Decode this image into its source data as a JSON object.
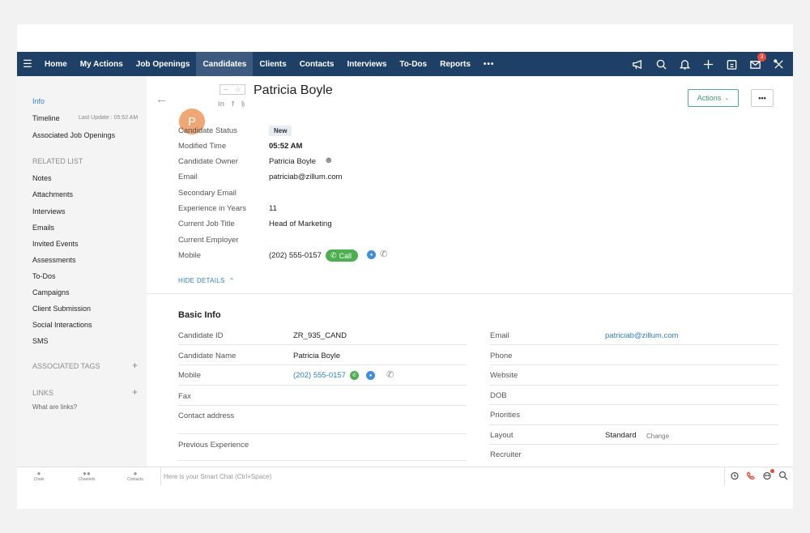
{
  "nav": {
    "tabs": [
      "Home",
      "My Actions",
      "Job Openings",
      "Candidates",
      "Clients",
      "Contacts",
      "Interviews",
      "To-Dos",
      "Reports"
    ],
    "more": "•••",
    "mail_badge": "3"
  },
  "sidebar": {
    "info": "Info",
    "timeline": "Timeline",
    "last_update": "Last Update : 05:52 AM",
    "associated_jobs": "Associated Job Openings",
    "related_list_heading": "RELATED LIST",
    "related": [
      "Notes",
      "Attachments",
      "Interviews",
      "Emails",
      "Invited Events",
      "Assessments",
      "To-Dos",
      "Campaigns",
      "Client Submission",
      "Social Interactions",
      "SMS"
    ],
    "associated_tags": "ASSOCIATED TAGS",
    "links": "LINKS",
    "what_are_links": "What are links?"
  },
  "candidate": {
    "avatar_letter": "P",
    "name": "Patricia Boyle",
    "actions_label": "Actions",
    "more_label": "•••"
  },
  "details": {
    "candidate_status_label": "Candidate Status",
    "candidate_status": "New",
    "modified_time_label": "Modified Time",
    "modified_time": "05:52 AM",
    "candidate_owner_label": "Candidate Owner",
    "candidate_owner": "Patricia Boyle",
    "email_label": "Email",
    "email": "patriciab@zillum.com",
    "secondary_email_label": "Secondary Email",
    "experience_label": "Experience in Years",
    "experience": "11",
    "job_title_label": "Current Job Title",
    "job_title": "Head of Marketing",
    "employer_label": "Current Employer",
    "mobile_label": "Mobile",
    "mobile": "(202) 555-0157",
    "call_label": "Call",
    "hide_details": "HIDE DETAILS"
  },
  "basic_info": {
    "heading": "Basic Info",
    "candidate_id_label": "Candidate ID",
    "candidate_id": "ZR_935_CAND",
    "candidate_name_label": "Candidate Name",
    "candidate_name": "Patricia Boyle",
    "mobile_label": "Mobile",
    "mobile": "(202) 555-0157",
    "fax_label": "Fax",
    "contact_address_label": "Contact address",
    "previous_experience_label": "Previous Experience",
    "email_label": "Email",
    "email": "patriciab@zillum.com",
    "phone_label": "Phone",
    "website_label": "Website",
    "dob_label": "DOB",
    "priorities_label": "Priorities",
    "layout_label": "Layout",
    "layout": "Standard",
    "change_label": "Change",
    "recruiter_label": "Recruiter"
  },
  "chatbar": {
    "chats": "Chats",
    "channels": "Channels",
    "contacts": "Contacts",
    "placeholder": "Here is your Smart Chat (Ctrl+Space)"
  }
}
